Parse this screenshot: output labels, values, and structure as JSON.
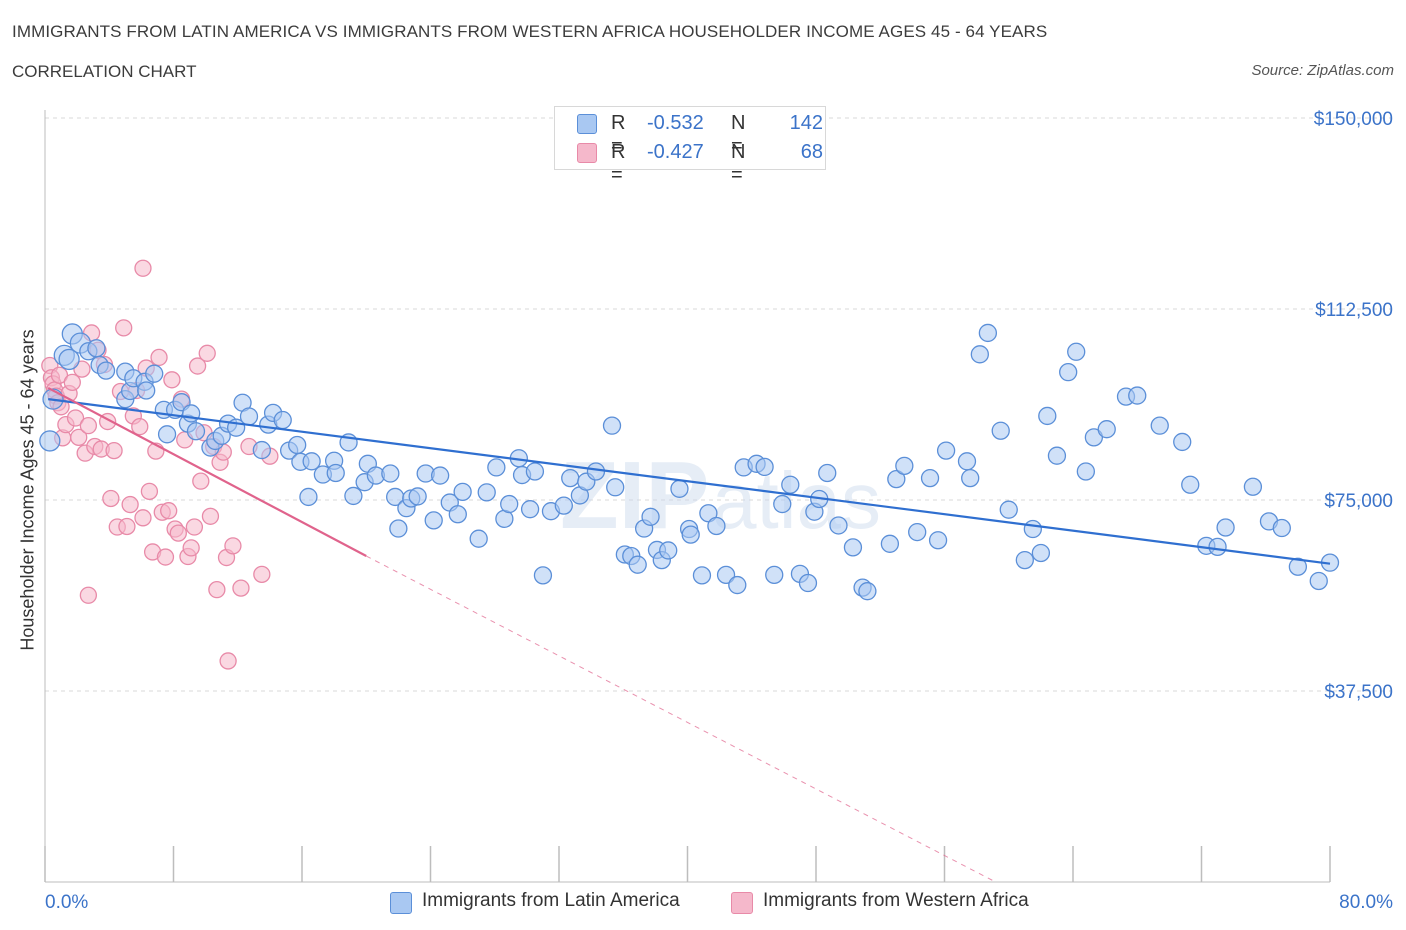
{
  "header": {
    "title": "IMMIGRANTS FROM LATIN AMERICA VS IMMIGRANTS FROM WESTERN AFRICA HOUSEHOLDER INCOME AGES 45 - 64 YEARS",
    "subtitle": "CORRELATION CHART",
    "source": "Source: ZipAtlas.com"
  },
  "legend_top": {
    "rows": [
      {
        "r_label": "R =",
        "r_value": "-0.532",
        "n_label": "N =",
        "n_value": "142"
      },
      {
        "r_label": "R =",
        "r_value": "-0.427",
        "n_label": "N =",
        "n_value": "68"
      }
    ]
  },
  "legend_bottom": {
    "items": [
      "Immigrants from Latin America",
      "Immigrants from Western Africa"
    ]
  },
  "watermark": {
    "zip": "ZIP",
    "atlas": "atlas"
  },
  "colors": {
    "blue_fill": "#a9c8f2",
    "blue_stroke": "#5b8fd8",
    "blue_line": "#2f6fd0",
    "pink_fill": "#f5b8cb",
    "pink_stroke": "#e88aa8",
    "pink_line": "#e0638c",
    "grid": "#d9d9d9",
    "axis_text": "#3b73c9"
  },
  "chart_data": {
    "type": "scatter",
    "title": "IMMIGRANTS FROM LATIN AMERICA VS IMMIGRANTS FROM WESTERN AFRICA HOUSEHOLDER INCOME AGES 45 - 64 YEARS",
    "xlabel": "",
    "ylabel": "Householder Income Ages 45 - 64 years",
    "xlim": [
      0,
      80
    ],
    "ylim": [
      0,
      150000
    ],
    "x_tick_labels": [
      "0.0%",
      "80.0%"
    ],
    "y_ticks": [
      37500,
      75000,
      112500,
      150000
    ],
    "y_tick_labels": [
      "$37,500",
      "$75,000",
      "$112,500",
      "$150,000"
    ],
    "grid": true,
    "series": [
      {
        "name": "Immigrants from Latin America",
        "R": -0.532,
        "N": 142,
        "trend": {
          "x0": 0.2,
          "y0": 94800,
          "x1": 80,
          "y1": 62500
        },
        "points": [
          [
            0.3,
            86600
          ],
          [
            0.5,
            94800
          ],
          [
            1.2,
            103400
          ],
          [
            1.5,
            102600
          ],
          [
            1.7,
            107600
          ],
          [
            2.2,
            105800
          ],
          [
            2.7,
            104200
          ],
          [
            3.2,
            104800
          ],
          [
            3.4,
            101500
          ],
          [
            3.8,
            100400
          ],
          [
            5.0,
            100200
          ],
          [
            5.0,
            94800
          ],
          [
            5.3,
            96400
          ],
          [
            5.5,
            98900
          ],
          [
            6.2,
            98200
          ],
          [
            6.3,
            96500
          ],
          [
            6.8,
            99800
          ],
          [
            7.4,
            92700
          ],
          [
            7.6,
            87900
          ],
          [
            8.1,
            92700
          ],
          [
            8.5,
            94200
          ],
          [
            8.9,
            90000
          ],
          [
            9.1,
            92000
          ],
          [
            9.4,
            88500
          ],
          [
            10.3,
            85300
          ],
          [
            10.6,
            86600
          ],
          [
            11.0,
            87600
          ],
          [
            11.4,
            90000
          ],
          [
            11.9,
            89200
          ],
          [
            12.3,
            94100
          ],
          [
            12.7,
            91400
          ],
          [
            13.5,
            84800
          ],
          [
            13.9,
            89800
          ],
          [
            14.2,
            92100
          ],
          [
            14.8,
            90700
          ],
          [
            15.2,
            84700
          ],
          [
            15.7,
            85800
          ],
          [
            15.9,
            82500
          ],
          [
            16.4,
            75600
          ],
          [
            16.6,
            82600
          ],
          [
            17.3,
            80000
          ],
          [
            18.0,
            82700
          ],
          [
            18.1,
            80300
          ],
          [
            18.9,
            86300
          ],
          [
            19.2,
            75800
          ],
          [
            19.9,
            78500
          ],
          [
            20.1,
            82100
          ],
          [
            20.6,
            79800
          ],
          [
            21.5,
            80200
          ],
          [
            21.8,
            75600
          ],
          [
            22.0,
            69400
          ],
          [
            22.5,
            73400
          ],
          [
            22.8,
            75300
          ],
          [
            23.2,
            75700
          ],
          [
            23.7,
            80200
          ],
          [
            24.2,
            71000
          ],
          [
            24.6,
            79800
          ],
          [
            25.2,
            74500
          ],
          [
            25.7,
            72200
          ],
          [
            26.0,
            76600
          ],
          [
            27.0,
            67400
          ],
          [
            27.5,
            76500
          ],
          [
            28.1,
            81400
          ],
          [
            28.6,
            71300
          ],
          [
            28.9,
            74200
          ],
          [
            29.5,
            83200
          ],
          [
            29.7,
            79900
          ],
          [
            30.2,
            73200
          ],
          [
            30.5,
            80600
          ],
          [
            31.0,
            60200
          ],
          [
            31.5,
            72800
          ],
          [
            32.3,
            73900
          ],
          [
            32.7,
            79300
          ],
          [
            33.3,
            75900
          ],
          [
            33.7,
            78600
          ],
          [
            34.3,
            80600
          ],
          [
            35.3,
            89600
          ],
          [
            35.5,
            77500
          ],
          [
            36.1,
            64300
          ],
          [
            36.5,
            64000
          ],
          [
            36.9,
            62300
          ],
          [
            37.3,
            69400
          ],
          [
            37.7,
            71700
          ],
          [
            38.1,
            65200
          ],
          [
            38.4,
            63200
          ],
          [
            38.8,
            65100
          ],
          [
            39.5,
            77200
          ],
          [
            40.1,
            69300
          ],
          [
            40.2,
            68200
          ],
          [
            40.9,
            60200
          ],
          [
            41.3,
            72400
          ],
          [
            41.8,
            69900
          ],
          [
            42.4,
            60300
          ],
          [
            43.1,
            58300
          ],
          [
            43.5,
            81400
          ],
          [
            44.3,
            82100
          ],
          [
            44.8,
            81500
          ],
          [
            45.4,
            60300
          ],
          [
            45.9,
            74200
          ],
          [
            46.4,
            78000
          ],
          [
            47.0,
            60500
          ],
          [
            47.5,
            58700
          ],
          [
            47.9,
            72700
          ],
          [
            48.2,
            75200
          ],
          [
            48.7,
            80300
          ],
          [
            49.4,
            70000
          ],
          [
            50.3,
            65700
          ],
          [
            50.9,
            57800
          ],
          [
            51.2,
            57100
          ],
          [
            52.6,
            66400
          ],
          [
            53.0,
            79100
          ],
          [
            53.5,
            81700
          ],
          [
            54.3,
            68700
          ],
          [
            55.1,
            79300
          ],
          [
            55.6,
            67100
          ],
          [
            56.1,
            84700
          ],
          [
            57.4,
            82600
          ],
          [
            57.6,
            79300
          ],
          [
            58.2,
            103600
          ],
          [
            58.7,
            107800
          ],
          [
            59.5,
            88600
          ],
          [
            60.0,
            73100
          ],
          [
            61.0,
            63200
          ],
          [
            61.5,
            69300
          ],
          [
            62.0,
            64600
          ],
          [
            62.4,
            91500
          ],
          [
            63.0,
            83700
          ],
          [
            63.7,
            100100
          ],
          [
            64.2,
            104100
          ],
          [
            64.8,
            80600
          ],
          [
            65.3,
            87300
          ],
          [
            66.1,
            88900
          ],
          [
            67.3,
            95300
          ],
          [
            68.0,
            95500
          ],
          [
            69.4,
            89600
          ],
          [
            70.8,
            86400
          ],
          [
            71.3,
            78000
          ],
          [
            72.3,
            66000
          ],
          [
            73.0,
            65800
          ],
          [
            73.5,
            69600
          ],
          [
            75.2,
            77600
          ],
          [
            76.2,
            70800
          ],
          [
            77.0,
            69500
          ],
          [
            78.0,
            61900
          ],
          [
            79.3,
            59100
          ],
          [
            80.0,
            62700
          ]
        ]
      },
      {
        "name": "Immigrants from Western Africa",
        "R": -0.427,
        "N": 68,
        "trend": {
          "x0": 0.2,
          "y0": 97000,
          "x1": 20,
          "y1": 64000,
          "dash_x1": 80,
          "dash_y1": -34000
        },
        "points": [
          [
            0.3,
            101400
          ],
          [
            0.4,
            99000
          ],
          [
            0.5,
            97800
          ],
          [
            0.6,
            96600
          ],
          [
            0.7,
            95400
          ],
          [
            0.8,
            94100
          ],
          [
            0.9,
            99500
          ],
          [
            1.0,
            93300
          ],
          [
            1.1,
            87200
          ],
          [
            1.3,
            89800
          ],
          [
            1.5,
            95900
          ],
          [
            1.7,
            98100
          ],
          [
            1.9,
            91100
          ],
          [
            2.1,
            87300
          ],
          [
            2.3,
            100700
          ],
          [
            2.5,
            84200
          ],
          [
            2.7,
            89600
          ],
          [
            2.9,
            107800
          ],
          [
            3.1,
            85500
          ],
          [
            3.3,
            104400
          ],
          [
            3.5,
            85000
          ],
          [
            3.7,
            101600
          ],
          [
            3.9,
            90400
          ],
          [
            4.1,
            75300
          ],
          [
            4.3,
            84700
          ],
          [
            4.5,
            69700
          ],
          [
            4.7,
            96300
          ],
          [
            4.9,
            108800
          ],
          [
            5.1,
            69800
          ],
          [
            5.3,
            74100
          ],
          [
            5.5,
            91500
          ],
          [
            5.7,
            96500
          ],
          [
            5.9,
            89400
          ],
          [
            6.1,
            71500
          ],
          [
            6.3,
            100900
          ],
          [
            6.5,
            76700
          ],
          [
            6.7,
            64800
          ],
          [
            6.9,
            84600
          ],
          [
            7.1,
            103000
          ],
          [
            7.3,
            72600
          ],
          [
            7.5,
            63800
          ],
          [
            7.7,
            72900
          ],
          [
            7.9,
            98600
          ],
          [
            8.1,
            69300
          ],
          [
            8.3,
            68500
          ],
          [
            8.5,
            94800
          ],
          [
            8.7,
            86800
          ],
          [
            8.9,
            63900
          ],
          [
            9.1,
            65600
          ],
          [
            9.3,
            69700
          ],
          [
            9.5,
            101300
          ],
          [
            9.7,
            78700
          ],
          [
            9.9,
            88200
          ],
          [
            10.1,
            103800
          ],
          [
            10.3,
            71800
          ],
          [
            10.5,
            85500
          ],
          [
            10.7,
            57400
          ],
          [
            10.9,
            82400
          ],
          [
            11.1,
            84400
          ],
          [
            11.3,
            63700
          ],
          [
            11.7,
            66000
          ],
          [
            12.2,
            57700
          ],
          [
            12.7,
            85500
          ],
          [
            13.5,
            60400
          ],
          [
            14.0,
            83600
          ],
          [
            6.1,
            120500
          ],
          [
            2.7,
            56300
          ],
          [
            11.4,
            43400
          ]
        ]
      }
    ]
  }
}
